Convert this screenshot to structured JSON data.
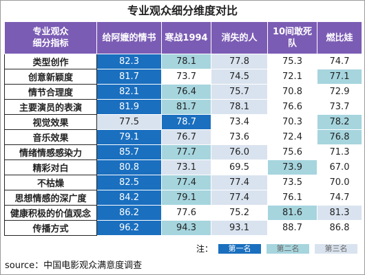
{
  "title": "专业观众细分维度对比",
  "table": {
    "header_color": "#7b5cb4",
    "headers": [
      "专业观众\n细分指标",
      "给阿嬷的情书",
      "寒战1994",
      "消失的人",
      "10间敢死队",
      "燃比娃"
    ],
    "rows": [
      {
        "label": "类型创作",
        "cells": [
          {
            "text": "82.3",
            "color": "#1a6fbf"
          },
          {
            "text": "78.1",
            "color": "#a6d5de"
          },
          {
            "text": "77.8",
            "color": "#d9e3ef"
          },
          {
            "text": "75.3",
            "color": "#ffffff"
          },
          {
            "text": "74.7",
            "color": "#ffffff"
          }
        ]
      },
      {
        "label": "创意新颖度",
        "cells": [
          {
            "text": "81.7",
            "color": "#1a6fbf"
          },
          {
            "text": "73.7",
            "color": "#ffffff"
          },
          {
            "text": "74.5",
            "color": "#d9e3ef"
          },
          {
            "text": "72.1",
            "color": "#ffffff"
          },
          {
            "text": "77.1",
            "color": "#a6d5de"
          }
        ]
      },
      {
        "label": "情节合理度",
        "cells": [
          {
            "text": "82.1",
            "color": "#1a6fbf"
          },
          {
            "text": "76.4",
            "color": "#a6d5de"
          },
          {
            "text": "75.7",
            "color": "#d9e3ef"
          },
          {
            "text": "70.8",
            "color": "#ffffff"
          },
          {
            "text": "72.9",
            "color": "#ffffff"
          }
        ]
      },
      {
        "label": "主要演员的表演",
        "cells": [
          {
            "text": "81.9",
            "color": "#1a6fbf"
          },
          {
            "text": "81.7",
            "color": "#a6d5de"
          },
          {
            "text": "78.1",
            "color": "#d9e3ef"
          },
          {
            "text": "76.6",
            "color": "#ffffff"
          },
          {
            "text": "73.7",
            "color": "#ffffff"
          }
        ]
      },
      {
        "label": "视觉效果",
        "cells": [
          {
            "text": "77.5",
            "color": "#d9e3ef"
          },
          {
            "text": "78.7",
            "color": "#1a6fbf"
          },
          {
            "text": "73.4",
            "color": "#ffffff"
          },
          {
            "text": "70.3",
            "color": "#ffffff"
          },
          {
            "text": "78.2",
            "color": "#a6d5de"
          }
        ]
      },
      {
        "label": "音乐效果",
        "cells": [
          {
            "text": "79.1",
            "color": "#1a6fbf"
          },
          {
            "text": "76.7",
            "color": "#d9e3ef"
          },
          {
            "text": "73.6",
            "color": "#ffffff"
          },
          {
            "text": "72.4",
            "color": "#ffffff"
          },
          {
            "text": "76.8",
            "color": "#a6d5de"
          }
        ]
      },
      {
        "label": "情绪情感感染力",
        "cells": [
          {
            "text": "85.7",
            "color": "#1a6fbf"
          },
          {
            "text": "77.7",
            "color": "#a6d5de"
          },
          {
            "text": "76.0",
            "color": "#d9e3ef"
          },
          {
            "text": "75.6",
            "color": "#ffffff"
          },
          {
            "text": "71.3",
            "color": "#ffffff"
          }
        ]
      },
      {
        "label": "精彩对白",
        "cells": [
          {
            "text": "80.8",
            "color": "#1a6fbf"
          },
          {
            "text": "73.1",
            "color": "#d9e3ef"
          },
          {
            "text": "69.5",
            "color": "#ffffff"
          },
          {
            "text": "73.9",
            "color": "#a6d5de"
          },
          {
            "text": "67.0",
            "color": "#ffffff"
          }
        ]
      },
      {
        "label": "不枯燥",
        "cells": [
          {
            "text": "82.5",
            "color": "#1a6fbf"
          },
          {
            "text": "77.4",
            "color": "#a6d5de"
          },
          {
            "text": "77.4",
            "color": "#d9e3ef"
          },
          {
            "text": "73.5",
            "color": "#ffffff"
          },
          {
            "text": "70.0",
            "color": "#ffffff"
          }
        ]
      },
      {
        "label": "思想情感的深广度",
        "cells": [
          {
            "text": "84.2",
            "color": "#1a6fbf"
          },
          {
            "text": "79.1",
            "color": "#a6d5de"
          },
          {
            "text": "77.4",
            "color": "#d9e3ef"
          },
          {
            "text": "76.1",
            "color": "#ffffff"
          },
          {
            "text": "74.7",
            "color": "#ffffff"
          }
        ]
      },
      {
        "label": "健康积极的价值观念",
        "cells": [
          {
            "text": "86.2",
            "color": "#1a6fbf"
          },
          {
            "text": "77.6",
            "color": "#ffffff"
          },
          {
            "text": "75.2",
            "color": "#ffffff"
          },
          {
            "text": "81.6",
            "color": "#a6d5de"
          },
          {
            "text": "81.3",
            "color": "#d9e3ef"
          }
        ]
      },
      {
        "label": "传播方式",
        "cells": [
          {
            "text": "96.2",
            "color": "#1a6fbf"
          },
          {
            "text": "94.3",
            "color": "#a6d5de"
          },
          {
            "text": "93.1",
            "color": "#d9e3ef"
          },
          {
            "text": "88.7",
            "color": "#ffffff"
          },
          {
            "text": "86.8",
            "color": "#ffffff"
          }
        ]
      }
    ]
  },
  "legend": {
    "note": "注：",
    "items": [
      {
        "label": "第一名",
        "color": "#1a6fbf"
      },
      {
        "label": "第二名",
        "color": "#a6d5de"
      },
      {
        "label": "第三名",
        "color": "#d9e3ef"
      }
    ]
  },
  "source": "source：中国电影观众满意度调查"
}
